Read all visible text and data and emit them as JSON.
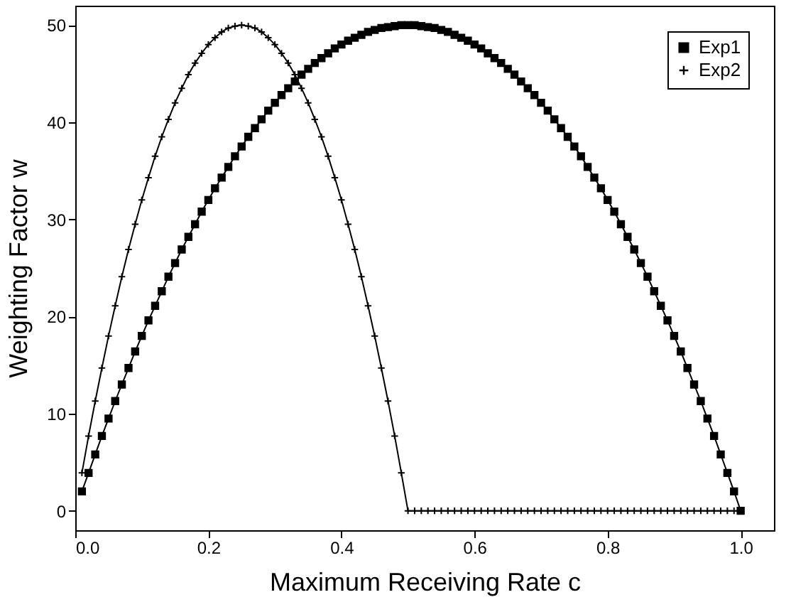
{
  "chart_data": {
    "type": "line",
    "xlabel": "Maximum Receiving Rate c",
    "ylabel": "Weighting Factor w",
    "x": [
      0.01,
      0.02,
      0.03,
      0.04,
      0.05,
      0.06,
      0.07,
      0.08,
      0.09,
      0.1,
      0.11,
      0.12,
      0.13,
      0.14,
      0.15,
      0.16,
      0.17,
      0.18,
      0.19,
      0.2,
      0.21,
      0.22,
      0.23,
      0.24,
      0.25,
      0.26,
      0.27,
      0.28,
      0.29,
      0.3,
      0.31,
      0.32,
      0.33,
      0.34,
      0.35,
      0.36,
      0.37,
      0.38,
      0.39,
      0.4,
      0.41,
      0.42,
      0.43,
      0.44,
      0.45,
      0.46,
      0.47,
      0.48,
      0.49,
      0.5,
      0.51,
      0.52,
      0.53,
      0.54,
      0.55,
      0.56,
      0.57,
      0.58,
      0.59,
      0.6,
      0.61,
      0.62,
      0.63,
      0.64,
      0.65,
      0.66,
      0.67,
      0.68,
      0.69,
      0.7,
      0.71,
      0.72,
      0.73,
      0.74,
      0.75,
      0.76,
      0.77,
      0.78,
      0.79,
      0.8,
      0.81,
      0.82,
      0.83,
      0.84,
      0.85,
      0.86,
      0.87,
      0.88,
      0.89,
      0.9,
      0.91,
      0.92,
      0.93,
      0.94,
      0.95,
      0.96,
      0.97,
      0.98,
      0.99,
      1.0
    ],
    "series": [
      {
        "name": "Exp1",
        "color": "#000000",
        "marker": "square",
        "values": [
          2.0,
          3.9,
          5.8,
          7.7,
          9.5,
          11.3,
          13.0,
          14.7,
          16.4,
          18.0,
          19.6,
          21.1,
          22.6,
          24.1,
          25.5,
          26.9,
          28.2,
          29.5,
          30.8,
          32.0,
          33.2,
          34.3,
          35.4,
          36.5,
          37.5,
          38.5,
          39.4,
          40.3,
          41.2,
          42.0,
          42.8,
          43.5,
          44.2,
          44.9,
          45.5,
          46.1,
          46.6,
          47.1,
          47.6,
          48.0,
          48.4,
          48.7,
          49.0,
          49.3,
          49.5,
          49.7,
          49.8,
          49.9,
          50.0,
          50.0,
          50.0,
          49.9,
          49.8,
          49.7,
          49.5,
          49.3,
          49.0,
          48.7,
          48.4,
          48.0,
          47.6,
          47.1,
          46.6,
          46.1,
          45.5,
          44.9,
          44.2,
          43.5,
          42.8,
          42.0,
          41.2,
          40.3,
          39.4,
          38.5,
          37.5,
          36.5,
          35.4,
          34.3,
          33.2,
          32.0,
          30.8,
          29.5,
          28.2,
          26.9,
          25.5,
          24.1,
          22.6,
          21.1,
          19.6,
          18.0,
          16.4,
          14.7,
          13.0,
          11.3,
          9.5,
          7.7,
          5.8,
          3.9,
          2.0,
          0
        ]
      },
      {
        "name": "Exp2",
        "color": "#000000",
        "marker": "cross",
        "values": [
          3.9,
          7.7,
          11.3,
          14.7,
          18.0,
          21.1,
          24.1,
          26.9,
          29.5,
          32.0,
          34.3,
          36.5,
          38.5,
          40.3,
          42.0,
          43.5,
          44.9,
          46.1,
          47.1,
          48.0,
          48.7,
          49.3,
          49.7,
          49.9,
          50.0,
          49.9,
          49.7,
          49.3,
          48.7,
          48.0,
          47.1,
          46.1,
          44.9,
          43.5,
          42.0,
          40.3,
          38.5,
          36.5,
          34.3,
          32.0,
          29.5,
          26.9,
          24.1,
          21.1,
          18.0,
          14.7,
          11.3,
          7.7,
          3.9,
          0,
          0,
          0,
          0,
          0,
          0,
          0,
          0,
          0,
          0,
          0,
          0,
          0,
          0,
          0,
          0,
          0,
          0,
          0,
          0,
          0,
          0,
          0,
          0,
          0,
          0,
          0,
          0,
          0,
          0,
          0,
          0,
          0,
          0,
          0,
          0,
          0,
          0,
          0,
          0,
          0,
          0,
          0,
          0,
          0,
          0,
          0,
          0,
          0,
          0,
          0
        ]
      }
    ],
    "xlim": [
      0,
      1.05
    ],
    "xticks": [
      {
        "value": 0,
        "label": "0.0"
      },
      {
        "value": 0.2,
        "label": "0.2"
      },
      {
        "value": 0.4,
        "label": "0.4"
      },
      {
        "value": 0.6,
        "label": "0.6"
      },
      {
        "value": 0.8,
        "label": "0.8"
      },
      {
        "value": 1,
        "label": "1.0"
      }
    ],
    "ylim": [
      -2,
      52
    ],
    "yticks": [
      0,
      10,
      20,
      30,
      40,
      50
    ],
    "legend": "top right",
    "line_style": "solid"
  }
}
